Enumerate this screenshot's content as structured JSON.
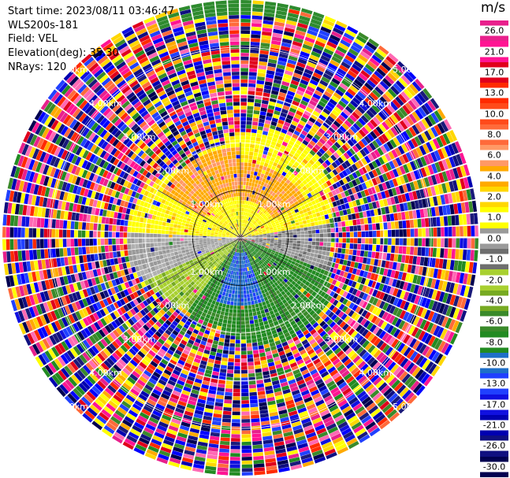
{
  "info": {
    "start_time": "Start time: 2023/08/11 03:46:47",
    "instrument": "WLS200s-181",
    "field": "Field: VEL",
    "elevation": "Elevation(deg): 35.30",
    "nrays": "NRays: 120"
  },
  "colorbar": {
    "unit": "m/s",
    "ticks": [
      "26.0",
      "21.0",
      "17.0",
      "13.0",
      "10.0",
      "8.0",
      "6.0",
      "4.0",
      "2.0",
      "1.0",
      "0.0",
      "-1.0",
      "-2.0",
      "-4.0",
      "-6.0",
      "-8.0",
      "-10.0",
      "-13.0",
      "-17.0",
      "-21.0",
      "-26.0",
      "-30.0"
    ],
    "colors": [
      "#e8208c",
      "#ff1493",
      "#e0001c",
      "#ff2a00",
      "#ff4a1a",
      "#ff6a3a",
      "#ff9966",
      "#ffaa00",
      "#ffd700",
      "#ffff00",
      "#9a9a9a",
      "#6e6e6e",
      "#a8d030",
      "#77aa22",
      "#3a8a2a",
      "#228b22",
      "#1e6fc8",
      "#2040ff",
      "#1010e0",
      "#0000b0",
      "#101080",
      "#000050"
    ]
  },
  "chart_data": {
    "type": "ppi",
    "field": "VEL",
    "units": "m/s",
    "nrays": 120,
    "range_ring_labels": [
      "1.00km",
      "2.00km",
      "3.00km",
      "4.00km",
      "5.00km"
    ],
    "color_scale_range": [
      -30.0,
      26.0
    ],
    "pattern": "inner region: yellow/orange north half, grey along east-west axis, green/blue south half; outer rings: noise"
  }
}
